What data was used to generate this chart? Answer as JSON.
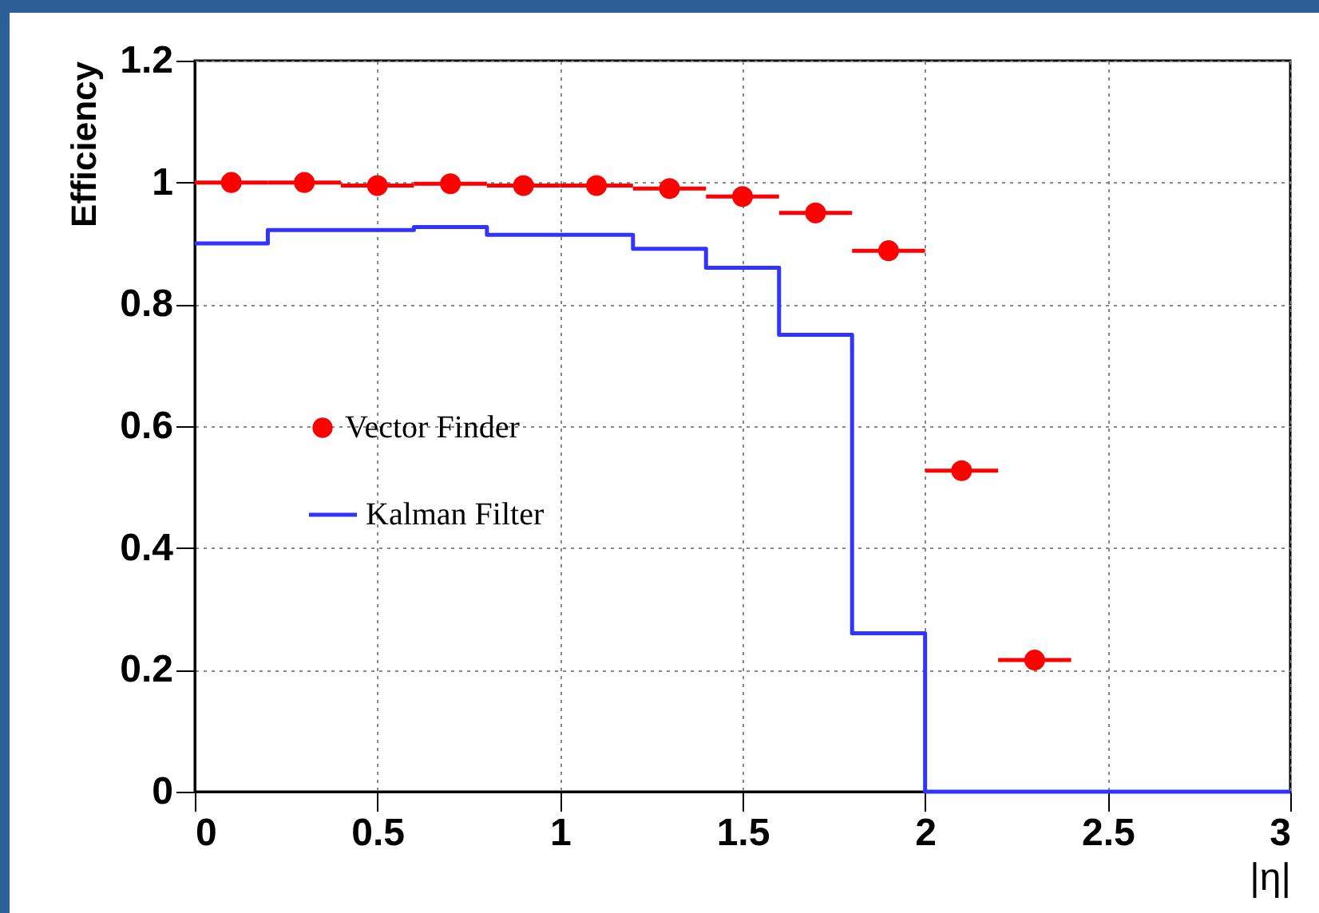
{
  "chart_data": {
    "type": "scatter",
    "xlabel": "|η|",
    "ylabel": "Efficiency",
    "xlim": [
      0,
      3
    ],
    "xticks": [
      0,
      0.5,
      1,
      1.5,
      2,
      2.5,
      3
    ],
    "ylim": [
      0,
      1.2
    ],
    "yticks": [
      0,
      0.2,
      0.4,
      0.6,
      0.8,
      1,
      1.2
    ],
    "grid": true,
    "legend": "left",
    "series": [
      {
        "name": "Vector Finder",
        "type": "scatter",
        "color": "#ff0000",
        "marker": "circle",
        "x": [
          0.1,
          0.3,
          0.5,
          0.7,
          0.9,
          1.1,
          1.3,
          1.5,
          1.7,
          1.9,
          2.1,
          2.3
        ],
        "values": [
          1.0,
          1.0,
          0.995,
          0.998,
          0.995,
          0.995,
          0.99,
          0.977,
          0.95,
          0.888,
          0.527,
          0.216
        ],
        "xerrors": [
          0.1,
          0.1,
          0.1,
          0.1,
          0.1,
          0.1,
          0.1,
          0.1,
          0.1,
          0.1,
          0.1,
          0.1
        ]
      },
      {
        "name": "Kalman Filter",
        "type": "step",
        "color": "#3333ff",
        "line_style": "solid",
        "x": [
          0,
          0.2,
          0.4,
          0.6,
          0.8,
          1.0,
          1.2,
          1.4,
          1.6,
          1.8,
          2.0,
          2.2,
          2.4,
          2.6,
          2.8,
          3.0
        ],
        "values": [
          0.9,
          0.922,
          0.922,
          0.927,
          0.914,
          0.914,
          0.891,
          0.86,
          0.75,
          0.26,
          0,
          0,
          0,
          0,
          0,
          0
        ]
      }
    ]
  }
}
